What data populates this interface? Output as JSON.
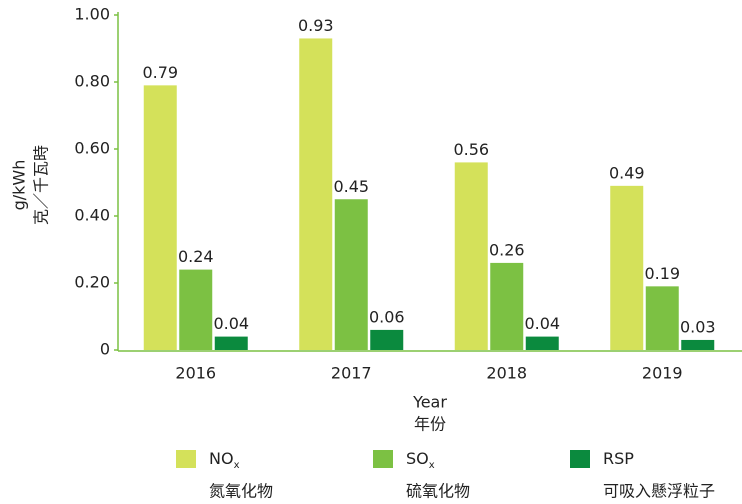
{
  "chart_data": {
    "type": "bar",
    "y_label": "g/kWh",
    "y_label_zh": "克／千瓦時",
    "x_label": "Year",
    "x_label_zh": "年份",
    "categories": [
      "2016",
      "2017",
      "2018",
      "2019"
    ],
    "series": [
      {
        "name": "NO",
        "name_sub": "x",
        "name_zh": "氮氧化物",
        "color": "#d4e15a",
        "values": [
          0.79,
          0.93,
          0.56,
          0.49
        ]
      },
      {
        "name": "SO",
        "name_sub": "x",
        "name_zh": "硫氧化物",
        "color": "#7cc143",
        "values": [
          0.24,
          0.45,
          0.26,
          0.19
        ]
      },
      {
        "name": "RSP",
        "name_zh": "可吸入懸浮粒子",
        "color": "#0b8a3e",
        "values": [
          0.04,
          0.06,
          0.04,
          0.03
        ]
      }
    ],
    "ylim": [
      0,
      1
    ],
    "yticks": [
      0,
      {
        "value": 0.2,
        "label": "0.20"
      },
      {
        "value": 0.4,
        "label": "0.40"
      },
      {
        "value": 0.6,
        "label": "0.60"
      },
      {
        "value": 0.8,
        "label": "0.80"
      },
      {
        "value": 1,
        "label": "1.00"
      }
    ]
  }
}
